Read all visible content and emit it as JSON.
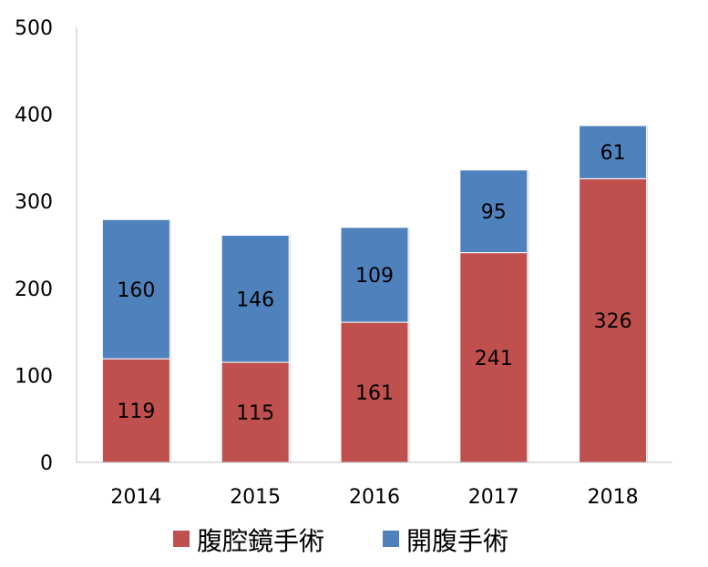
{
  "chart_data": {
    "type": "bar",
    "stacked": true,
    "categories": [
      "2014",
      "2015",
      "2016",
      "2017",
      "2018"
    ],
    "series": [
      {
        "name": "腹腔鏡手術",
        "values": [
          119,
          115,
          161,
          241,
          326
        ],
        "color": "#c0504d"
      },
      {
        "name": "開腹手術",
        "values": [
          160,
          146,
          109,
          95,
          61
        ],
        "color": "#4f81bd"
      }
    ],
    "ylim": [
      0,
      500
    ],
    "yticks": [
      0,
      100,
      200,
      300,
      400,
      500
    ],
    "grid": false,
    "legend": "bottom",
    "data_labels": true
  }
}
